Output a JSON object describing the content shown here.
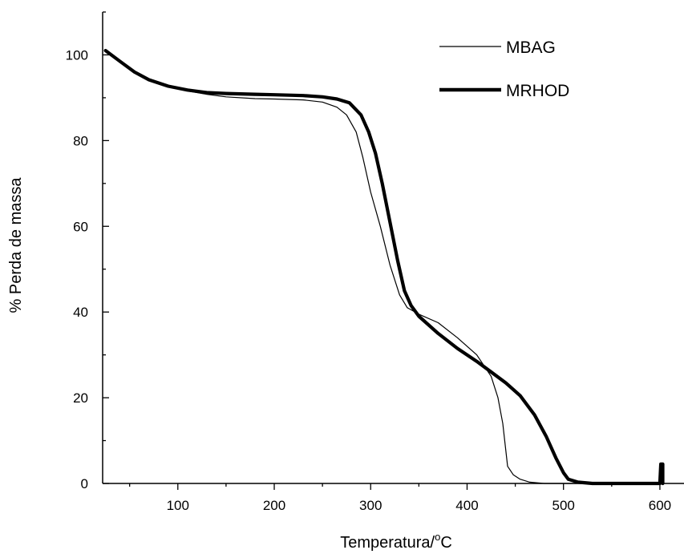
{
  "chart_data": {
    "type": "line",
    "title": "",
    "xlabel": "Temperatura/",
    "xlabel_sup": "o",
    "xlabel_unit": "C",
    "ylabel": "% Perda de massa",
    "xlim": [
      22,
      625
    ],
    "ylim": [
      0,
      110
    ],
    "xticks": [
      100,
      200,
      300,
      400,
      500,
      600
    ],
    "yticks": [
      0,
      20,
      40,
      60,
      80,
      100
    ],
    "grid": false,
    "legend_position": "top-right",
    "series": [
      {
        "name": "MBAG",
        "color": "#000000",
        "line_weight": "thin",
        "points": [
          [
            25,
            101
          ],
          [
            40,
            98.5
          ],
          [
            55,
            96
          ],
          [
            70,
            94.2
          ],
          [
            90,
            92.7
          ],
          [
            110,
            91.6
          ],
          [
            130,
            90.8
          ],
          [
            150,
            90.2
          ],
          [
            180,
            89.8
          ],
          [
            200,
            89.7
          ],
          [
            230,
            89.5
          ],
          [
            250,
            89
          ],
          [
            265,
            87.8
          ],
          [
            275,
            86
          ],
          [
            285,
            82
          ],
          [
            292,
            76
          ],
          [
            300,
            68
          ],
          [
            310,
            60
          ],
          [
            320,
            51
          ],
          [
            330,
            44
          ],
          [
            338,
            41
          ],
          [
            350,
            39.5
          ],
          [
            370,
            37.5
          ],
          [
            390,
            34
          ],
          [
            410,
            30
          ],
          [
            425,
            25
          ],
          [
            432,
            20
          ],
          [
            437,
            14
          ],
          [
            440,
            8
          ],
          [
            442,
            4
          ],
          [
            448,
            2
          ],
          [
            455,
            1
          ],
          [
            465,
            0.3
          ],
          [
            480,
            0
          ],
          [
            520,
            0
          ],
          [
            600,
            0
          ]
        ]
      },
      {
        "name": "MRHOD",
        "color": "#000000",
        "line_weight": "thick",
        "points": [
          [
            25,
            101
          ],
          [
            40,
            98.5
          ],
          [
            55,
            96
          ],
          [
            70,
            94.2
          ],
          [
            90,
            92.7
          ],
          [
            110,
            91.8
          ],
          [
            130,
            91.2
          ],
          [
            150,
            91
          ],
          [
            180,
            90.8
          ],
          [
            200,
            90.7
          ],
          [
            230,
            90.5
          ],
          [
            250,
            90.2
          ],
          [
            265,
            89.7
          ],
          [
            278,
            88.8
          ],
          [
            290,
            86
          ],
          [
            298,
            82
          ],
          [
            305,
            77
          ],
          [
            312,
            70
          ],
          [
            320,
            61
          ],
          [
            328,
            52
          ],
          [
            335,
            45
          ],
          [
            342,
            41.5
          ],
          [
            350,
            39
          ],
          [
            370,
            35
          ],
          [
            390,
            31.5
          ],
          [
            410,
            28.5
          ],
          [
            425,
            26
          ],
          [
            440,
            23.5
          ],
          [
            455,
            20.5
          ],
          [
            470,
            16
          ],
          [
            482,
            11
          ],
          [
            492,
            6
          ],
          [
            500,
            2.5
          ],
          [
            505,
            1
          ],
          [
            515,
            0.3
          ],
          [
            530,
            0
          ],
          [
            570,
            0
          ],
          [
            600,
            0
          ],
          [
            601,
            4.5
          ],
          [
            603,
            4.5
          ],
          [
            603,
            0
          ]
        ]
      }
    ]
  }
}
